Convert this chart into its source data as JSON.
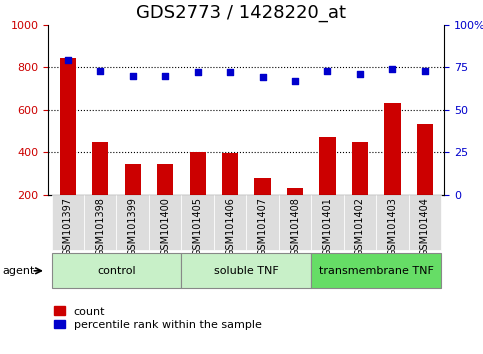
{
  "title": "GDS2773 / 1428220_at",
  "categories": [
    "GSM101397",
    "GSM101398",
    "GSM101399",
    "GSM101400",
    "GSM101405",
    "GSM101406",
    "GSM101407",
    "GSM101408",
    "GSM101401",
    "GSM101402",
    "GSM101403",
    "GSM101404"
  ],
  "counts": [
    845,
    450,
    345,
    345,
    400,
    395,
    280,
    230,
    470,
    450,
    630,
    535
  ],
  "percentile_ranks": [
    79,
    73,
    70,
    70,
    72,
    72,
    69,
    67,
    73,
    71,
    74,
    73
  ],
  "groups": [
    {
      "label": "control",
      "start": 0,
      "end": 4,
      "color": "#c8f0c8"
    },
    {
      "label": "soluble TNF",
      "start": 4,
      "end": 8,
      "color": "#c8f0c8"
    },
    {
      "label": "transmembrane TNF",
      "start": 8,
      "end": 12,
      "color": "#66dd66"
    }
  ],
  "bar_color": "#cc0000",
  "dot_color": "#0000cc",
  "ylim_left": [
    200,
    1000
  ],
  "ylim_right": [
    0,
    100
  ],
  "yticks_left": [
    200,
    400,
    600,
    800,
    1000
  ],
  "yticks_right": [
    0,
    25,
    50,
    75,
    100
  ],
  "grid_values": [
    400,
    600,
    800
  ],
  "agent_label": "agent",
  "legend_count_label": "count",
  "legend_percentile_label": "percentile rank within the sample",
  "tick_bg_color": "#dddddd",
  "group_border_color": "#888888",
  "ax_bg_color": "#ffffff",
  "title_fontsize": 13,
  "tick_fontsize": 7,
  "label_fontsize": 8
}
